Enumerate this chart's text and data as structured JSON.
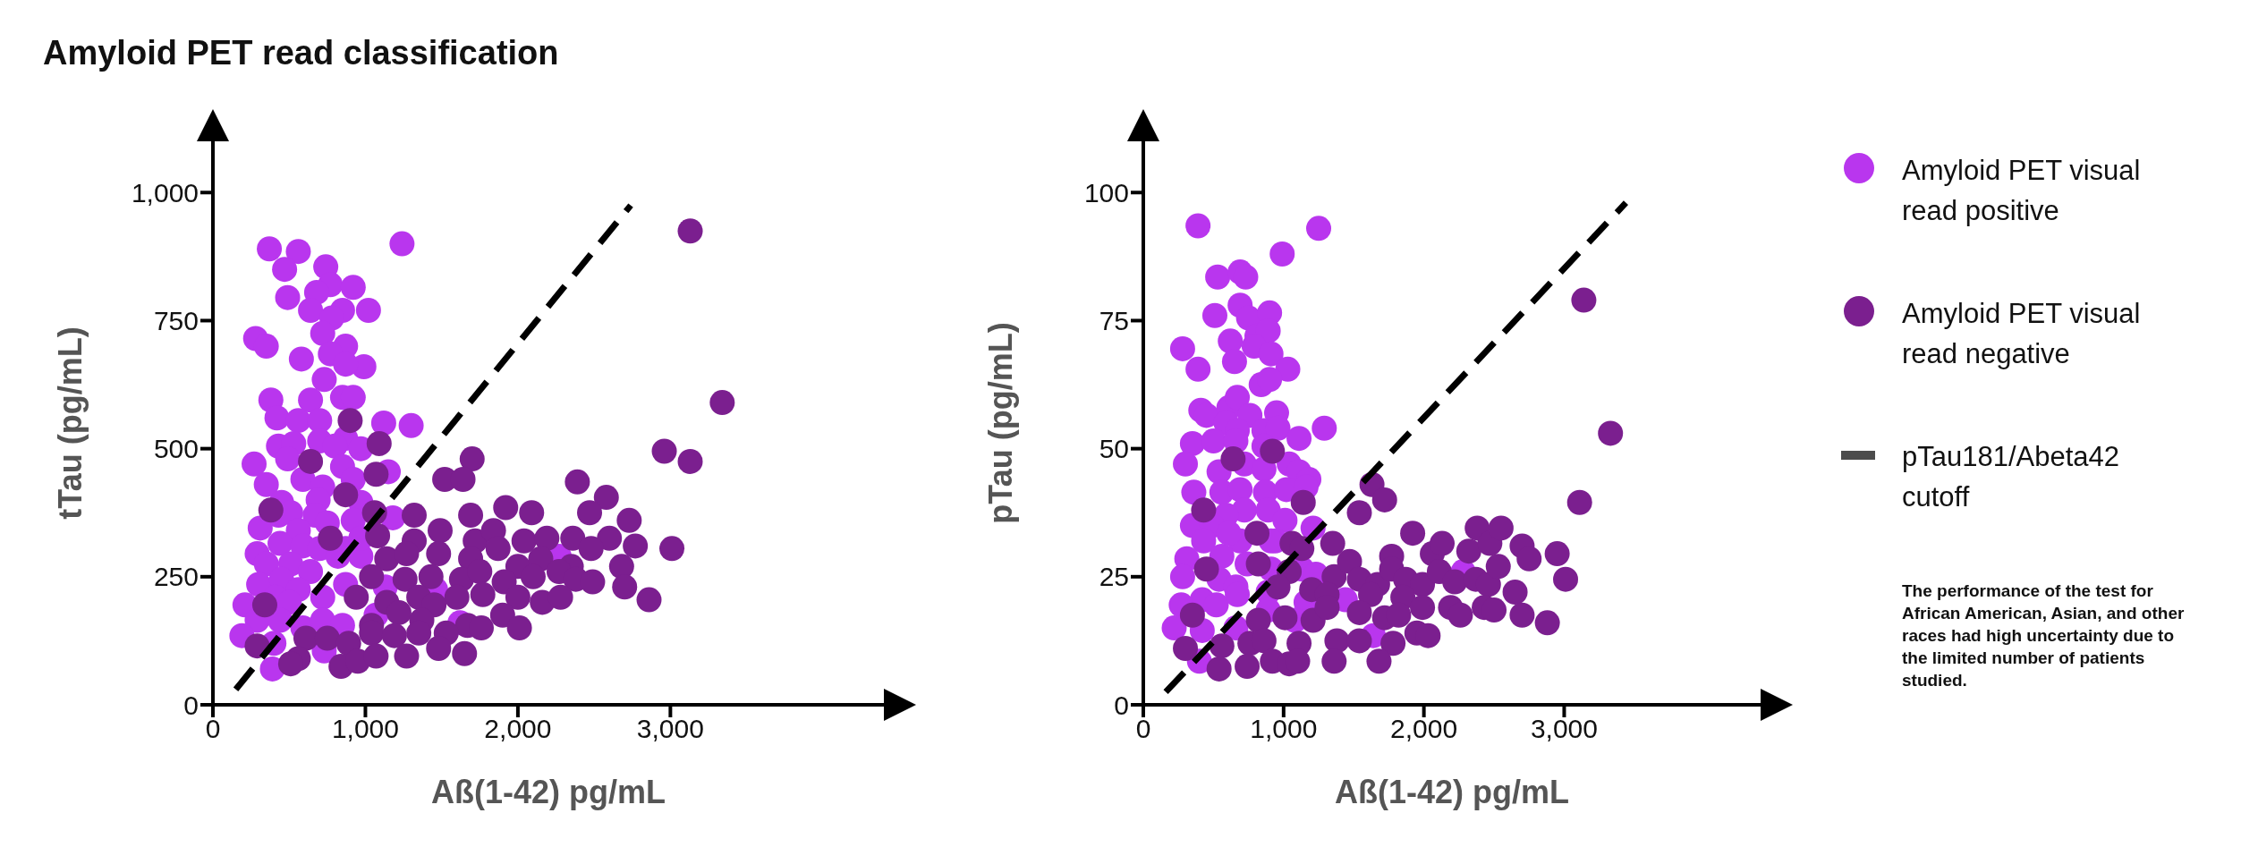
{
  "chart_data": [
    {
      "type": "scatter",
      "title": "Amyloid PET read classification",
      "xlabel": "Aß(1-42) pg/mL",
      "ylabel": "tTau (pg/mL)",
      "xlim": [
        0,
        4400
      ],
      "ylim": [
        0,
        1100
      ],
      "xticks": [
        0,
        {
          "value": 1000,
          "label": "1,000"
        },
        {
          "value": 2000,
          "label": "2,000"
        },
        {
          "value": 3000,
          "label": "3,000"
        }
      ],
      "yticks": [
        0,
        250,
        500,
        750,
        {
          "value": 1000,
          "label": "1,000"
        }
      ],
      "series": [
        {
          "color": "#b936ee",
          "marker": "circle",
          "x": [
            370,
            560,
            470,
            740,
            770,
            680,
            920,
            490,
            640,
            850,
            1020,
            780,
            720,
            870,
            770,
            280,
            350,
            580,
            990,
            870,
            730,
            380,
            640,
            850,
            920,
            420,
            560,
            700,
            1120,
            1300,
            1240,
            430,
            530,
            700,
            870,
            970,
            800,
            270,
            490,
            350,
            590,
            850,
            920,
            720,
            1150,
            450,
            690,
            970,
            430,
            510,
            670,
            750,
            920,
            310,
            560,
            1180,
            290,
            440,
            590,
            700,
            870,
            970,
            350,
            510,
            640,
            820,
            300,
            450,
            560,
            410,
            210,
            500,
            720,
            870,
            1130,
            1460,
            290,
            440,
            590,
            720,
            850,
            1070,
            1620,
            190,
            400,
            730,
            390,
            2270,
            970
          ],
          "values": [
            890,
            885,
            850,
            855,
            820,
            805,
            815,
            795,
            770,
            770,
            770,
            755,
            725,
            700,
            685,
            715,
            700,
            675,
            660,
            665,
            635,
            595,
            595,
            600,
            600,
            560,
            555,
            555,
            550,
            545,
            900,
            505,
            510,
            515,
            520,
            500,
            505,
            470,
            480,
            430,
            440,
            465,
            440,
            425,
            455,
            395,
            400,
            395,
            370,
            375,
            370,
            355,
            360,
            345,
            340,
            365,
            295,
            315,
            310,
            305,
            305,
            290,
            275,
            275,
            260,
            290,
            235,
            245,
            225,
            210,
            195,
            200,
            210,
            235,
            230,
            225,
            165,
            165,
            150,
            165,
            155,
            175,
            160,
            135,
            120,
            105,
            70,
            290,
            325
          ]
        },
        {
          "color": "#7b1f8f",
          "marker": "circle",
          "x": [
            900,
            1090,
            640,
            1070,
            1700,
            1520,
            1640,
            870,
            380,
            1060,
            1320,
            1690,
            1920,
            2090,
            2390,
            2580,
            2470,
            2730,
            2960,
            3010,
            3130,
            3340,
            3130,
            1080,
            1320,
            1490,
            1720,
            1840,
            2040,
            2190,
            2360,
            2600,
            2770,
            1140,
            1270,
            1480,
            1690,
            1870,
            2000,
            2150,
            2350,
            2480,
            2680,
            770,
            1040,
            1260,
            1430,
            1630,
            1750,
            1910,
            2100,
            2270,
            2380,
            2490,
            2700,
            2860,
            940,
            1140,
            1350,
            1450,
            1600,
            1770,
            2000,
            2160,
            2280,
            340,
            1040,
            1220,
            1370,
            1670,
            1760,
            1900,
            2010,
            610,
            750,
            890,
            1040,
            1190,
            1350,
            1530,
            290,
            560,
            510,
            840,
            950,
            1070,
            1270,
            1480,
            1650
          ],
          "values": [
            555,
            510,
            475,
            450,
            480,
            440,
            440,
            410,
            380,
            375,
            370,
            370,
            385,
            375,
            435,
            405,
            375,
            360,
            495,
            305,
            925,
            590,
            475,
            330,
            320,
            340,
            320,
            340,
            320,
            325,
            325,
            325,
            310,
            285,
            295,
            295,
            285,
            305,
            270,
            285,
            270,
            305,
            270,
            325,
            250,
            245,
            250,
            245,
            260,
            240,
            250,
            260,
            245,
            240,
            230,
            205,
            210,
            200,
            210,
            195,
            210,
            215,
            210,
            200,
            210,
            195,
            155,
            180,
            165,
            155,
            150,
            175,
            150,
            130,
            130,
            120,
            140,
            135,
            140,
            140,
            115,
            90,
            80,
            75,
            85,
            95,
            95,
            110,
            100
          ]
        },
        {
          "type": "line",
          "color": "#000000",
          "line_style": "dashed",
          "x": [
            150,
            2740
          ],
          "values": [
            30,
            975
          ]
        }
      ]
    },
    {
      "type": "scatter",
      "xlabel": "Aß(1-42) pg/mL",
      "ylabel": "pTau (pg/mL)",
      "xlim": [
        0,
        4400
      ],
      "ylim": [
        0,
        110
      ],
      "xticks": [
        0,
        {
          "value": 1000,
          "label": "1,000"
        },
        {
          "value": 2000,
          "label": "2,000"
        },
        {
          "value": 3000,
          "label": "3,000"
        }
      ],
      "yticks": [
        0,
        25,
        50,
        75,
        100
      ],
      "legend": "right",
      "annotations": [
        "The performance of the test for African American, Asian, and other races had high uncertainty due to the limited number of patients studied."
      ],
      "series": [
        {
          "name": "Amyloid PET visual read positive",
          "color": "#b936ee",
          "marker": "circle",
          "x": [
            390,
            1250,
            990,
            530,
            690,
            730,
            690,
            510,
            750,
            900,
            810,
            890,
            620,
            790,
            910,
            650,
            1030,
            280,
            390,
            840,
            900,
            410,
            450,
            610,
            670,
            760,
            950,
            590,
            670,
            860,
            960,
            1110,
            1290,
            350,
            500,
            660,
            860,
            300,
            540,
            720,
            860,
            1040,
            1110,
            1180,
            360,
            560,
            690,
            870,
            1020,
            1160,
            720,
            890,
            1010,
            590,
            350,
            490,
            430,
            690,
            940,
            1210,
            310,
            560,
            740,
            910,
            1130,
            1230,
            280,
            540,
            660,
            420,
            270,
            520,
            670,
            890,
            890,
            1160,
            1440,
            1080,
            220,
            420,
            660,
            1640,
            400,
            2280,
            910,
            610
          ],
          "values": [
            93.5,
            93,
            88,
            83.5,
            84.5,
            83.5,
            78,
            76,
            75.5,
            76.5,
            72,
            73,
            71,
            70,
            68.5,
            67,
            65.5,
            69.5,
            65.5,
            62.5,
            63.5,
            57.5,
            56.5,
            58,
            60,
            56.5,
            57,
            55,
            53.5,
            53.5,
            54,
            52,
            54,
            51,
            51.5,
            51.5,
            50.5,
            47,
            45.5,
            47,
            46,
            47,
            45.5,
            44,
            41.5,
            41.5,
            42,
            41.5,
            42,
            42.5,
            38,
            38,
            36,
            37,
            35,
            35,
            32,
            32,
            32,
            34.5,
            28.5,
            29,
            27.5,
            26.5,
            26.5,
            25.5,
            25,
            24.5,
            23,
            20.5,
            19.5,
            19.5,
            21.5,
            22,
            18.5,
            20,
            20.5,
            16.5,
            15,
            14.5,
            15,
            13.5,
            8.5,
            26,
            32,
            33.5
          ]
        },
        {
          "name": "Amyloid PET visual read negative",
          "color": "#7b1f8f",
          "marker": "circle",
          "x": [
            920,
            640,
            1630,
            1720,
            1540,
            1140,
            430,
            810,
            1060,
            1130,
            1350,
            1920,
            2060,
            2130,
            2320,
            2380,
            2470,
            2550,
            2700,
            2750,
            3140,
            3330,
            3110,
            2950,
            3010,
            2880,
            450,
            820,
            1040,
            1200,
            1360,
            1470,
            1540,
            1670,
            1770,
            1770,
            1870,
            1990,
            2110,
            2220,
            2370,
            2460,
            2530,
            2650,
            960,
            1310,
            1620,
            1850,
            1990,
            2190,
            2260,
            2430,
            2500,
            2700,
            350,
            820,
            1010,
            1210,
            1310,
            1540,
            1720,
            1820,
            1380,
            1540,
            1780,
            1950,
            2030,
            300,
            560,
            760,
            860,
            1110,
            540,
            740,
            920,
            1040,
            1100,
            1360,
            1680
          ],
          "values": [
            49.5,
            48,
            43,
            40,
            37.5,
            39.5,
            38,
            33.5,
            31.5,
            30.5,
            31.5,
            33.5,
            29.5,
            31.5,
            30,
            34.5,
            31.5,
            34.5,
            31,
            28.5,
            79,
            53,
            39.5,
            29.5,
            24.5,
            16,
            26.5,
            27.5,
            26,
            22.5,
            25,
            28,
            24.5,
            23.5,
            29,
            26.5,
            24.5,
            23.5,
            26,
            24,
            24.5,
            23.5,
            27,
            22,
            23,
            21.5,
            21.5,
            21,
            19,
            19,
            17.5,
            19,
            18.5,
            17.5,
            17.5,
            16.5,
            17,
            16.5,
            19,
            18,
            17,
            17.5,
            12.5,
            12.5,
            12,
            14,
            13.5,
            11,
            11.5,
            12,
            12.5,
            12,
            7,
            7.5,
            8.5,
            8,
            8.5,
            8.5,
            8.5
          ]
        },
        {
          "type": "line",
          "name": "pTau181/Abeta42 cutoff",
          "color": "#000000",
          "line_style": "dashed",
          "x": [
            160,
            3440
          ],
          "values": [
            2.5,
            98
          ]
        }
      ]
    }
  ]
}
